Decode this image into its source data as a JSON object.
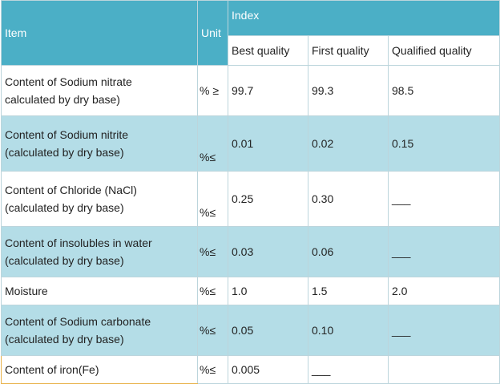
{
  "table": {
    "header": {
      "item": "Item",
      "unit": "Unit",
      "index": "Index",
      "grades": [
        "Best quality",
        "First quality",
        "Qualified quality"
      ]
    },
    "rows": [
      {
        "item_line1": "Content of Sodium nitrate",
        "item_line2": "calculated by dry base)",
        "unit": "% ≥",
        "best": "99.7",
        "first": "99.3",
        "qualified": "98.5"
      },
      {
        "item_line1": "Content of Sodium nitrite",
        "item_line2": "(calculated by dry base)",
        "unit": "%≤",
        "best": "0.01",
        "first": "0.02",
        "qualified": "0.15"
      },
      {
        "item_line1": "Content of Chloride (NaCl)",
        "item_line2": "(calculated by dry base)",
        "unit": "%≤",
        "best": "0.25",
        "first": "0.30",
        "qualified": "___"
      },
      {
        "item_line1": "Content of insolubles in water",
        "item_line2": "(calculated by dry base)",
        "unit": "%≤",
        "best": "0.03",
        "first": "0.06",
        "qualified": "___"
      },
      {
        "item_line1": "Moisture",
        "item_line2": "",
        "unit": "%≤",
        "best": "1.0",
        "first": "1.5",
        "qualified": "2.0"
      },
      {
        "item_line1": "Content of Sodium carbonate",
        "item_line2": "(calculated by dry base)",
        "unit": "%≤",
        "best": "0.05",
        "first": "0.10",
        "qualified": "___"
      },
      {
        "item_line1": "Content of iron(Fe)",
        "item_line2": "",
        "unit": "%≤",
        "best": "0.005",
        "first": "___",
        "qualified": ""
      }
    ]
  }
}
